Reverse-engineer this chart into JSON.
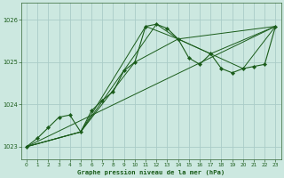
{
  "title": "Graphe pression niveau de la mer (hPa)",
  "bg_color": "#cce8e0",
  "grid_color": "#aaccc8",
  "line_color": "#1a5c1a",
  "marker_color": "#1a5c1a",
  "xlim": [
    -0.5,
    23.5
  ],
  "ylim": [
    1022.7,
    1026.4
  ],
  "yticks": [
    1023,
    1024,
    1025,
    1026
  ],
  "xticks": [
    0,
    1,
    2,
    3,
    4,
    5,
    6,
    7,
    8,
    9,
    10,
    11,
    12,
    13,
    14,
    15,
    16,
    17,
    18,
    19,
    20,
    21,
    22,
    23
  ],
  "main_x": [
    0,
    1,
    2,
    3,
    4,
    5,
    6,
    7,
    8,
    9,
    10,
    11,
    12,
    13,
    14,
    15,
    16,
    17,
    18,
    19,
    20,
    21,
    22,
    23
  ],
  "main_y": [
    1023.0,
    1023.2,
    1023.45,
    1023.7,
    1023.75,
    1023.35,
    1023.85,
    1024.1,
    1024.3,
    1024.8,
    1025.0,
    1025.85,
    1025.9,
    1025.8,
    1025.55,
    1025.1,
    1024.95,
    1025.2,
    1024.85,
    1024.75,
    1024.85,
    1024.9,
    1024.95,
    1025.85
  ],
  "line1_x": [
    0,
    23
  ],
  "line1_y": [
    1023.0,
    1025.85
  ],
  "line2_x": [
    0,
    5,
    10,
    14,
    23
  ],
  "line2_y": [
    1023.0,
    1023.35,
    1025.0,
    1025.55,
    1025.85
  ],
  "line3_x": [
    0,
    5,
    11,
    14,
    17,
    23
  ],
  "line3_y": [
    1023.0,
    1023.35,
    1025.85,
    1025.55,
    1025.2,
    1025.85
  ],
  "line4_x": [
    0,
    5,
    12,
    14,
    20,
    23
  ],
  "line4_y": [
    1023.0,
    1023.35,
    1025.9,
    1025.55,
    1024.85,
    1025.85
  ]
}
